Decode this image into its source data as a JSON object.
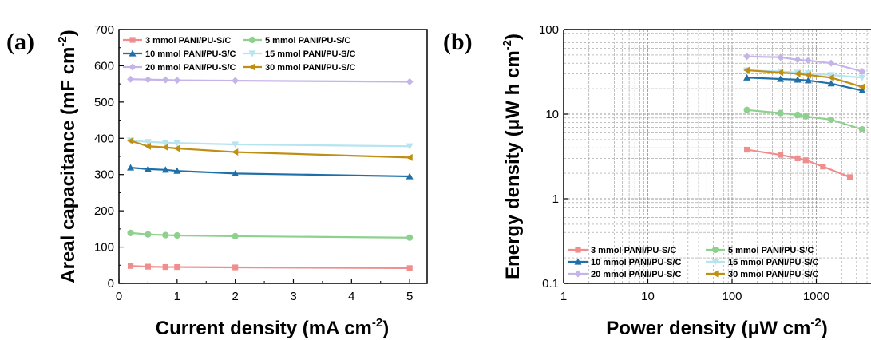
{
  "panels": {
    "a_label": "(a)",
    "b_label": "(b)"
  },
  "series_styles": [
    {
      "name": "3 mmol  PANI/PU-S/C",
      "color": "#f08e8e",
      "marker": "square"
    },
    {
      "name": "5 mmol  PANI/PU-S/C",
      "color": "#8ed08e",
      "marker": "circle"
    },
    {
      "name": "10 mmol PANI/PU-S/C",
      "color": "#1f6fa8",
      "marker": "triangle-up"
    },
    {
      "name": "15 mmol PANI/PU-S/C",
      "color": "#b6e4ef",
      "marker": "triangle-down"
    },
    {
      "name": "20 mmol PANI/PU-S/C",
      "color": "#c4b4ea",
      "marker": "diamond"
    },
    {
      "name": "30 mmol PANI/PU-S/C",
      "color": "#bf8f14",
      "marker": "triangle-left"
    }
  ],
  "chart_data": [
    {
      "type": "line",
      "panel": "(a)",
      "title": "",
      "xlabel": "Current density (mA cm",
      "xlabel_sup": "-2",
      "xlabel_end": ")",
      "ylabel": "Areal capacitance (mF cm",
      "ylabel_sup": "-2",
      "ylabel_end": ")",
      "xlim": [
        0,
        5.3
      ],
      "ylim": [
        0,
        700
      ],
      "xticks": [
        0,
        1,
        2,
        3,
        4,
        5
      ],
      "yticks": [
        0,
        100,
        200,
        300,
        400,
        500,
        600,
        700
      ],
      "grid": false,
      "legend_position": "top",
      "series": [
        {
          "name": "3 mmol  PANI/PU-S/C",
          "x": [
            0.2,
            0.5,
            0.8,
            1,
            2,
            5
          ],
          "y": [
            48,
            46,
            45,
            45,
            44,
            42
          ]
        },
        {
          "name": "5 mmol  PANI/PU-S/C",
          "x": [
            0.2,
            0.5,
            0.8,
            1,
            2,
            5
          ],
          "y": [
            139,
            135,
            133,
            132,
            130,
            126
          ]
        },
        {
          "name": "10 mmol PANI/PU-S/C",
          "x": [
            0.2,
            0.5,
            0.8,
            1,
            2,
            5
          ],
          "y": [
            319,
            315,
            313,
            310,
            303,
            295
          ]
        },
        {
          "name": "15 mmol PANI/PU-S/C",
          "x": [
            0.2,
            0.5,
            0.8,
            1,
            2,
            5
          ],
          "y": [
            394,
            390,
            388,
            387,
            383,
            378
          ]
        },
        {
          "name": "20 mmol PANI/PU-S/C",
          "x": [
            0.2,
            0.5,
            0.8,
            1,
            2,
            5
          ],
          "y": [
            563,
            562,
            561,
            560,
            559,
            556
          ]
        },
        {
          "name": "30 mmol PANI/PU-S/C",
          "x": [
            0.2,
            0.5,
            0.8,
            1,
            2,
            5
          ],
          "y": [
            393,
            378,
            375,
            372,
            362,
            347
          ]
        }
      ]
    },
    {
      "type": "line",
      "panel": "(b)",
      "title": "",
      "xlabel": "Power density (μW cm",
      "xlabel_sup": "-2",
      "xlabel_end": ")",
      "ylabel": "Energy density (μW h cm",
      "ylabel_sup": "-2",
      "ylabel_end": ")",
      "xscale": "log",
      "yscale": "log",
      "xlim": [
        1,
        3500
      ],
      "ylim": [
        0.1,
        100
      ],
      "xticks": [
        1,
        10,
        100,
        1000
      ],
      "xticklabels": [
        "1",
        "10",
        "100",
        "1000"
      ],
      "yticks": [
        0.1,
        1,
        10,
        100
      ],
      "yticklabels": [
        "0.1",
        "1",
        "10",
        "100"
      ],
      "grid": true,
      "legend_position": "bottom-left",
      "series": [
        {
          "name": "3 mmol  PANI/PU-S/C",
          "x": [
            150,
            375,
            600,
            750,
            1200,
            2500
          ],
          "y": [
            3.8,
            3.3,
            3.0,
            2.85,
            2.4,
            1.8
          ]
        },
        {
          "name": "5 mmol  PANI/PU-S/C",
          "x": [
            150,
            375,
            600,
            750,
            1500,
            3500
          ],
          "y": [
            11.2,
            10.3,
            9.8,
            9.4,
            8.6,
            6.6
          ]
        },
        {
          "name": "10 mmol PANI/PU-S/C",
          "x": [
            150,
            375,
            600,
            800,
            1500,
            3500
          ],
          "y": [
            27,
            26,
            25.5,
            25,
            23,
            19
          ]
        },
        {
          "name": "15 mmol PANI/PU-S/C",
          "x": [
            150,
            375,
            600,
            800,
            1500,
            3500
          ],
          "y": [
            33,
            32,
            31,
            30.5,
            29,
            27
          ]
        },
        {
          "name": "20 mmol PANI/PU-S/C",
          "x": [
            150,
            375,
            600,
            800,
            1500,
            3500
          ],
          "y": [
            48,
            47,
            44,
            43,
            40,
            32
          ]
        },
        {
          "name": "30 mmol PANI/PU-S/C",
          "x": [
            150,
            375,
            600,
            800,
            1500,
            3500
          ],
          "y": [
            33,
            31,
            30,
            29,
            27,
            21
          ]
        }
      ]
    }
  ]
}
